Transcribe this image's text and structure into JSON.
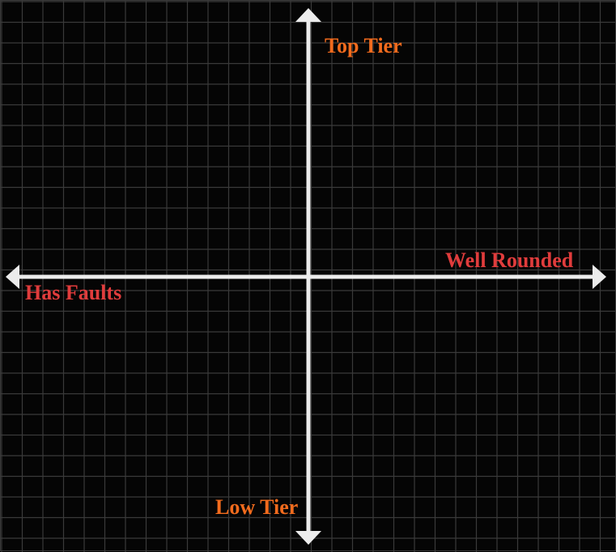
{
  "chart_data": {
    "type": "quadrant",
    "axes": {
      "y_positive": "Top Tier",
      "y_negative": "Low Tier",
      "x_positive": "Well Rounded",
      "x_negative": "Has Faults"
    },
    "grid": true,
    "items": []
  },
  "colors": {
    "background": "#050505",
    "grid_line": "#3a3a3a",
    "axis": "#ececec",
    "vertical_labels": "#f26b1d",
    "horizontal_labels": "#e03c3c"
  }
}
